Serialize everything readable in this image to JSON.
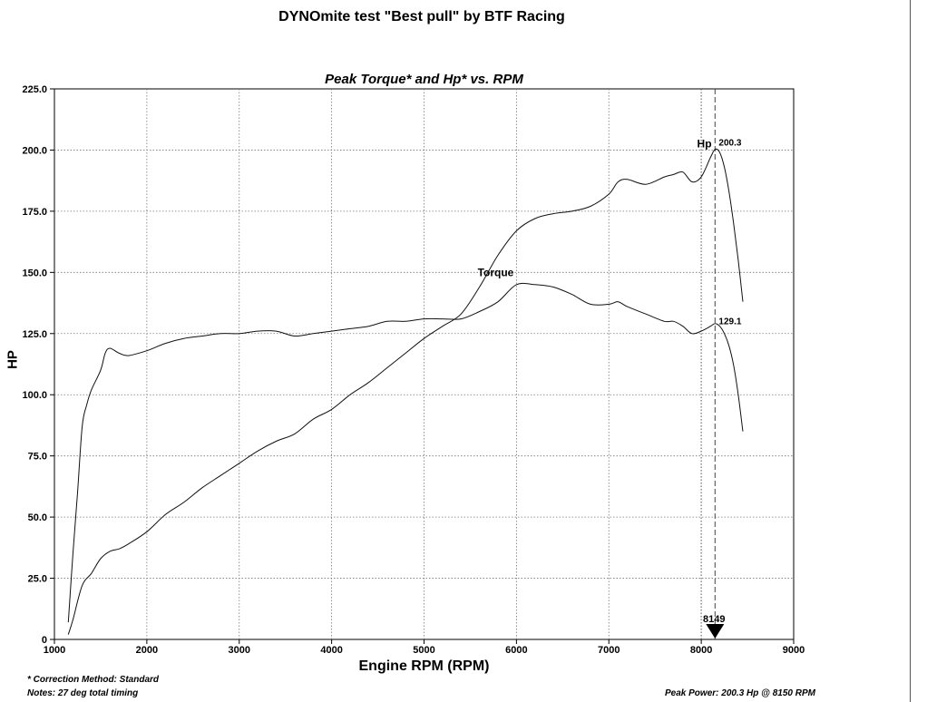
{
  "page": {
    "title": "DYNOmite test \"Best pull\" by BTF Racing",
    "notes": {
      "correction_method": "* Correction Method: Standard",
      "timing": "Notes: 27 deg total timing",
      "peak_power": "Peak Power: 200.3 Hp @ 8150 RPM"
    }
  },
  "chart_data": {
    "type": "line",
    "title": "Peak Torque* and Hp* vs. RPM",
    "xlabel": "Engine RPM (RPM)",
    "ylabel": "HP",
    "xlim": [
      1000,
      9000
    ],
    "ylim": [
      0,
      225
    ],
    "x_ticks": [
      "1000",
      "2000",
      "3000",
      "4000",
      "5000",
      "6000",
      "7000",
      "8000",
      "9000"
    ],
    "y_ticks": [
      "0",
      "25.0",
      "50.0",
      "75.0",
      "100.0",
      "125.0",
      "150.0",
      "175.0",
      "200.0",
      "225.0"
    ],
    "grid": true,
    "series": [
      {
        "name": "Hp",
        "x": [
          1150,
          1200,
          1300,
          1400,
          1500,
          1600,
          1700,
          1800,
          2000,
          2200,
          2400,
          2600,
          2800,
          3000,
          3200,
          3400,
          3600,
          3800,
          4000,
          4200,
          4400,
          4600,
          4800,
          5000,
          5200,
          5400,
          5600,
          5800,
          6000,
          6200,
          6400,
          6600,
          6800,
          7000,
          7100,
          7200,
          7400,
          7600,
          7700,
          7800,
          7900,
          8000,
          8100,
          8150,
          8200,
          8250,
          8300,
          8350,
          8400,
          8450
        ],
        "y": [
          2,
          8,
          22,
          27,
          33,
          36,
          37,
          39,
          44,
          51,
          56,
          62,
          67,
          72,
          77,
          81,
          84,
          90,
          94,
          100,
          105,
          111,
          117,
          123,
          128,
          133,
          144,
          157,
          167,
          172,
          174,
          175,
          177,
          182,
          187,
          188,
          186,
          189,
          190,
          191,
          187,
          189,
          197,
          200.3,
          199,
          193,
          183,
          170,
          155,
          138
        ]
      },
      {
        "name": "Torque",
        "x": [
          1150,
          1200,
          1250,
          1300,
          1350,
          1400,
          1500,
          1550,
          1600,
          1700,
          1800,
          2000,
          2200,
          2400,
          2600,
          2800,
          3000,
          3200,
          3400,
          3600,
          3800,
          4000,
          4200,
          4400,
          4600,
          4800,
          5000,
          5200,
          5400,
          5600,
          5800,
          6000,
          6200,
          6400,
          6600,
          6800,
          7000,
          7100,
          7200,
          7400,
          7600,
          7700,
          7800,
          7900,
          8000,
          8100,
          8150,
          8200,
          8250,
          8300,
          8350,
          8400,
          8450
        ],
        "y": [
          7,
          35,
          60,
          87,
          96,
          102,
          110,
          117,
          119,
          117,
          116,
          118,
          121,
          123,
          124,
          125,
          125,
          126,
          126,
          124,
          125,
          126,
          127,
          128,
          130,
          130,
          131,
          131,
          131,
          134,
          138,
          145,
          145,
          144,
          141,
          137,
          137,
          138,
          136,
          133,
          130,
          130,
          128,
          125,
          126,
          128,
          129.1,
          128,
          125,
          120,
          112,
          100,
          85
        ]
      }
    ],
    "labels": [
      {
        "text": "Hp",
        "series": "Hp"
      },
      {
        "text": "200.3",
        "series": "Hp",
        "at_rpm": 8150
      },
      {
        "text": "Torque",
        "series": "Torque"
      },
      {
        "text": "129.1",
        "series": "Torque",
        "at_rpm": 8150
      }
    ],
    "marker": {
      "rpm": 8149,
      "label": "8149",
      "shape": "down-triangle"
    },
    "vertical_lines_rpm": [
      8000,
      8149
    ]
  }
}
